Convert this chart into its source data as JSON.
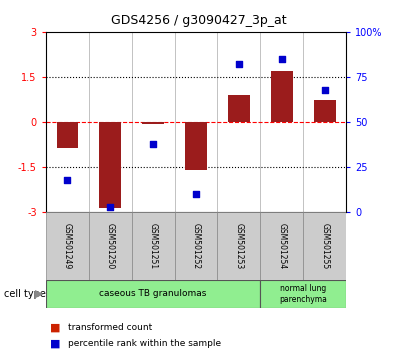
{
  "title": "GDS4256 / g3090427_3p_at",
  "samples": [
    "GSM501249",
    "GSM501250",
    "GSM501251",
    "GSM501252",
    "GSM501253",
    "GSM501254",
    "GSM501255"
  ],
  "transformed_count": [
    -0.85,
    -2.85,
    -0.05,
    -1.6,
    0.9,
    1.7,
    0.75
  ],
  "percentile_rank": [
    18,
    3,
    38,
    10,
    82,
    85,
    68
  ],
  "bar_color": "#9B1C1C",
  "dot_color": "#0000CC",
  "left_ylim": [
    -3,
    3
  ],
  "left_yticks": [
    -3,
    -1.5,
    0,
    1.5,
    3
  ],
  "left_ytick_labels": [
    "-3",
    "-1.5",
    "0",
    "1.5",
    "3"
  ],
  "right_ylim": [
    0,
    100
  ],
  "right_yticks": [
    0,
    25,
    50,
    75,
    100
  ],
  "right_ytick_labels": [
    "0",
    "25",
    "50",
    "75",
    "100%"
  ],
  "dotted_lines": [
    -1.5,
    1.5
  ],
  "group1_label": "caseous TB granulomas",
  "group1_count": 5,
  "group2_label": "normal lung\nparenchyma",
  "group2_count": 2,
  "group_color": "#90EE90",
  "cell_type_label": "cell type",
  "legend": [
    {
      "label": "transformed count",
      "color": "#CC2200"
    },
    {
      "label": "percentile rank within the sample",
      "color": "#0000CC"
    }
  ],
  "sample_box_color": "#CCCCCC",
  "plot_bg": "#FFFFFF"
}
